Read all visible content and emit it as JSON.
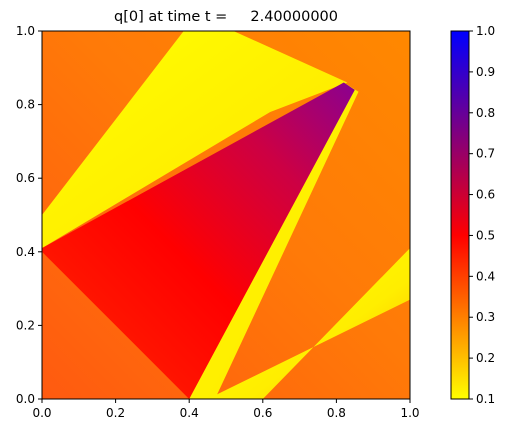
{
  "chart_data": {
    "type": "heatmap",
    "title": "q[0] at time t =     2.40000000",
    "xlabel": "",
    "ylabel": "",
    "xlim": [
      0.0,
      1.0
    ],
    "ylim": [
      0.0,
      1.0
    ],
    "x_ticks": [
      "0.0",
      "0.2",
      "0.4",
      "0.6",
      "0.8",
      "1.0"
    ],
    "y_ticks": [
      "0.0",
      "0.2",
      "0.4",
      "0.6",
      "0.8",
      "1.0"
    ],
    "colorbar": {
      "range": [
        0.1,
        1.0
      ],
      "ticks": [
        "0.1",
        "0.2",
        "0.3",
        "0.4",
        "0.5",
        "0.6",
        "0.7",
        "0.8",
        "0.9",
        "1.0"
      ],
      "colormap": [
        {
          "value": 0.1,
          "color": "#ffff00"
        },
        {
          "value": 0.5,
          "color": "#ff0000"
        },
        {
          "value": 1.0,
          "color": "#0000ff"
        }
      ]
    },
    "field": {
      "background_value": 0.4,
      "regions": [
        {
          "name": "lower-right yellow band",
          "value": 0.1,
          "polygon": [
            [
              0.4,
              0.0
            ],
            [
              0.47,
              0.0
            ],
            [
              0.86,
              0.835
            ],
            [
              0.82,
              0.86
            ],
            [
              0.76,
              0.82
            ]
          ]
        },
        {
          "name": "upper-left yellow band",
          "value": 0.1,
          "polygon": [
            [
              0.0,
              0.41
            ],
            [
              0.0,
              0.5
            ],
            [
              0.385,
              1.0
            ],
            [
              0.52,
              1.0
            ],
            [
              0.83,
              0.86
            ],
            [
              0.62,
              0.78
            ]
          ]
        },
        {
          "name": "bottom-right yellow band",
          "value": 0.1,
          "polygon": [
            [
              0.45,
              0.0
            ],
            [
              0.6,
              0.0
            ],
            [
              1.0,
              0.41
            ],
            [
              1.0,
              0.27
            ]
          ]
        },
        {
          "name": "central triangular wedge",
          "value_range": [
            0.45,
            0.75
          ],
          "polygon": [
            [
              0.0,
              0.41
            ],
            [
              0.0,
              0.4
            ],
            [
              0.4,
              0.0
            ],
            [
              0.85,
              0.84
            ],
            [
              0.82,
              0.86
            ]
          ]
        }
      ]
    }
  }
}
